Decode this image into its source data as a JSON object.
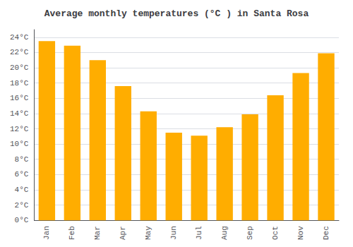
{
  "chart_data": {
    "type": "bar",
    "title": "Average monthly temperatures (°C ) in Santa Rosa",
    "categories": [
      "Jan",
      "Feb",
      "Mar",
      "Apr",
      "May",
      "Jun",
      "Jul",
      "Aug",
      "Sep",
      "Oct",
      "Nov",
      "Dec"
    ],
    "values": [
      23.5,
      22.9,
      21.0,
      17.6,
      14.3,
      11.5,
      11.1,
      12.2,
      13.9,
      16.4,
      19.3,
      21.9
    ],
    "color": "#FFAD00",
    "ylim": [
      0,
      25
    ],
    "yticks": [
      {
        "value": 0,
        "label": "0°C"
      },
      {
        "value": 2,
        "label": "2°C"
      },
      {
        "value": 4,
        "label": "4°C"
      },
      {
        "value": 6,
        "label": "6°C"
      },
      {
        "value": 8,
        "label": "8°C"
      },
      {
        "value": 10,
        "label": "10°C"
      },
      {
        "value": 12,
        "label": "12°C"
      },
      {
        "value": 14,
        "label": "14°C"
      },
      {
        "value": 16,
        "label": "16°C"
      },
      {
        "value": 18,
        "label": "18°C"
      },
      {
        "value": 20,
        "label": "20°C"
      },
      {
        "value": 22,
        "label": "22°C"
      },
      {
        "value": 24,
        "label": "24°C"
      }
    ],
    "grid": true
  }
}
